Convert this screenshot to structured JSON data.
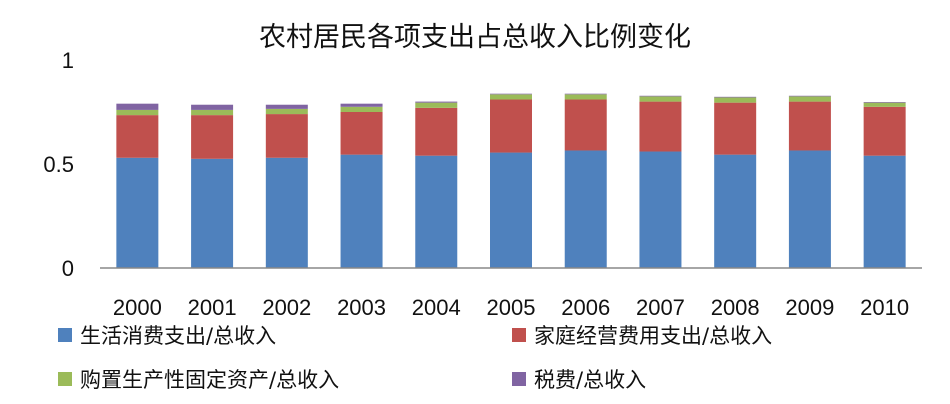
{
  "chart_data": {
    "type": "bar",
    "stacked": true,
    "title": "农村居民各项支出占总收入比例变化",
    "xlabel": "",
    "ylabel": "",
    "ylim": [
      0,
      1
    ],
    "yticks": [
      "0",
      "0.5",
      "1"
    ],
    "grid": false,
    "legend_position": "bottom",
    "categories": [
      "2000",
      "2001",
      "2002",
      "2003",
      "2004",
      "2005",
      "2006",
      "2007",
      "2008",
      "2009",
      "2010"
    ],
    "series": [
      {
        "name": "生活消费支出/总收入",
        "color": "#4F81BD",
        "values": [
          0.53,
          0.525,
          0.53,
          0.545,
          0.54,
          0.555,
          0.565,
          0.56,
          0.545,
          0.565,
          0.54
        ]
      },
      {
        "name": "家庭经营费用支出/总收入",
        "color": "#C0504D",
        "values": [
          0.205,
          0.21,
          0.21,
          0.205,
          0.23,
          0.255,
          0.245,
          0.24,
          0.25,
          0.235,
          0.235
        ]
      },
      {
        "name": "购置生产性固定资产/总收入",
        "color": "#9BBB59",
        "values": [
          0.025,
          0.025,
          0.025,
          0.025,
          0.025,
          0.025,
          0.025,
          0.025,
          0.025,
          0.025,
          0.02
        ]
      },
      {
        "name": "税费/总收入",
        "color": "#8064A2",
        "values": [
          0.03,
          0.025,
          0.02,
          0.015,
          0.005,
          0.003,
          0.003,
          0.003,
          0.003,
          0.003,
          0.003
        ]
      }
    ]
  }
}
